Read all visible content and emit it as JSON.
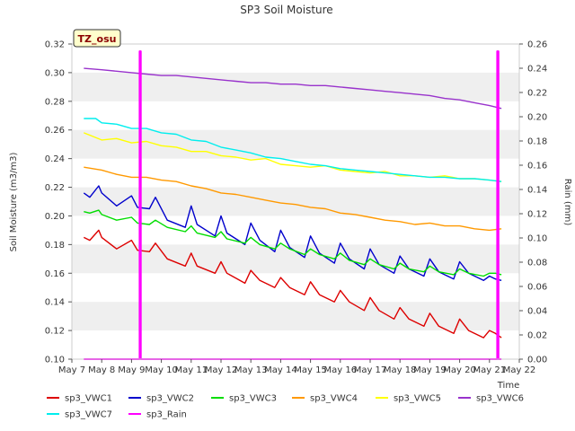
{
  "chart_data": {
    "type": "line",
    "title": "SP3 Soil Moisture",
    "badge": "TZ_osu",
    "xlabel": "Time",
    "ylabel": "Soil Moisture (m3/m3)",
    "y2label": "Rain (mm)",
    "x_tick_labels": [
      "May 7",
      "May 8",
      "May 9",
      "May 10",
      "May 11",
      "May 12",
      "May 13",
      "May 14",
      "May 15",
      "May 16",
      "May 17",
      "May 18",
      "May 19",
      "May 20",
      "May 21",
      "May 22"
    ],
    "xlim": [
      7,
      22
    ],
    "ylim": [
      0.1,
      0.32
    ],
    "y_ticks": [
      "0.10",
      "0.12",
      "0.14",
      "0.16",
      "0.18",
      "0.20",
      "0.22",
      "0.24",
      "0.26",
      "0.28",
      "0.30",
      "0.32"
    ],
    "y2lim": [
      0.0,
      0.26
    ],
    "y2_ticks": [
      "0.00",
      "0.02",
      "0.04",
      "0.06",
      "0.08",
      "0.10",
      "0.12",
      "0.14",
      "0.16",
      "0.18",
      "0.20",
      "0.22",
      "0.24",
      "0.26"
    ],
    "grid": "horizontal bands",
    "legend_position": "bottom",
    "series": [
      {
        "name": "sp3_VWC1",
        "color": "#dd0000",
        "axis": "left",
        "x": [
          7.4,
          7.6,
          7.9,
          8.0,
          8.5,
          9.0,
          9.2,
          9.6,
          9.8,
          10.2,
          10.8,
          11.0,
          11.2,
          11.8,
          12.0,
          12.2,
          12.8,
          13.0,
          13.3,
          13.8,
          14.0,
          14.3,
          14.8,
          15.0,
          15.3,
          15.8,
          16.0,
          16.3,
          16.8,
          17.0,
          17.3,
          17.8,
          18.0,
          18.3,
          18.8,
          19.0,
          19.3,
          19.8,
          20.0,
          20.3,
          20.8,
          21.0,
          21.2,
          21.4
        ],
        "y": [
          0.185,
          0.183,
          0.19,
          0.185,
          0.177,
          0.183,
          0.176,
          0.175,
          0.181,
          0.17,
          0.165,
          0.174,
          0.165,
          0.16,
          0.168,
          0.16,
          0.153,
          0.162,
          0.155,
          0.15,
          0.157,
          0.15,
          0.145,
          0.154,
          0.145,
          0.14,
          0.148,
          0.14,
          0.134,
          0.143,
          0.134,
          0.128,
          0.136,
          0.128,
          0.123,
          0.132,
          0.123,
          0.118,
          0.128,
          0.12,
          0.115,
          0.12,
          0.118,
          0.115
        ]
      },
      {
        "name": "sp3_VWC2",
        "color": "#0000cc",
        "axis": "left",
        "x": [
          7.4,
          7.6,
          7.9,
          8.0,
          8.5,
          9.0,
          9.2,
          9.6,
          9.8,
          10.2,
          10.8,
          11.0,
          11.2,
          11.8,
          12.0,
          12.2,
          12.8,
          13.0,
          13.3,
          13.8,
          14.0,
          14.3,
          14.8,
          15.0,
          15.3,
          15.8,
          16.0,
          16.3,
          16.8,
          17.0,
          17.3,
          17.8,
          18.0,
          18.3,
          18.8,
          19.0,
          19.3,
          19.8,
          20.0,
          20.3,
          20.8,
          21.0,
          21.2,
          21.4
        ],
        "y": [
          0.216,
          0.213,
          0.221,
          0.216,
          0.207,
          0.214,
          0.206,
          0.205,
          0.213,
          0.197,
          0.192,
          0.207,
          0.194,
          0.186,
          0.2,
          0.188,
          0.18,
          0.195,
          0.183,
          0.175,
          0.19,
          0.178,
          0.171,
          0.186,
          0.174,
          0.167,
          0.181,
          0.17,
          0.163,
          0.177,
          0.166,
          0.16,
          0.172,
          0.163,
          0.158,
          0.17,
          0.161,
          0.156,
          0.168,
          0.16,
          0.155,
          0.158,
          0.156,
          0.155
        ]
      },
      {
        "name": "sp3_VWC3",
        "color": "#00dd00",
        "axis": "left",
        "x": [
          7.4,
          7.6,
          7.9,
          8.0,
          8.5,
          9.0,
          9.2,
          9.6,
          9.8,
          10.2,
          10.8,
          11.0,
          11.2,
          11.8,
          12.0,
          12.2,
          12.8,
          13.0,
          13.3,
          13.8,
          14.0,
          14.3,
          14.8,
          15.0,
          15.3,
          15.8,
          16.0,
          16.3,
          16.8,
          17.0,
          17.3,
          17.8,
          18.0,
          18.3,
          18.8,
          19.0,
          19.3,
          19.8,
          20.0,
          20.3,
          20.8,
          21.0,
          21.2,
          21.4
        ],
        "y": [
          0.203,
          0.202,
          0.204,
          0.201,
          0.197,
          0.199,
          0.195,
          0.194,
          0.197,
          0.192,
          0.189,
          0.193,
          0.188,
          0.185,
          0.189,
          0.184,
          0.181,
          0.185,
          0.18,
          0.177,
          0.181,
          0.177,
          0.173,
          0.177,
          0.173,
          0.17,
          0.174,
          0.169,
          0.166,
          0.17,
          0.166,
          0.163,
          0.167,
          0.163,
          0.161,
          0.165,
          0.161,
          0.159,
          0.163,
          0.16,
          0.158,
          0.16,
          0.16,
          0.159
        ]
      },
      {
        "name": "sp3_VWC4",
        "color": "#ff9900",
        "axis": "left",
        "x": [
          7.4,
          8.0,
          8.5,
          9.0,
          9.5,
          10.0,
          10.5,
          11.0,
          11.5,
          12.0,
          12.5,
          13.0,
          13.5,
          14.0,
          14.5,
          15.0,
          15.5,
          16.0,
          16.5,
          17.0,
          17.5,
          18.0,
          18.5,
          19.0,
          19.5,
          20.0,
          20.5,
          21.0,
          21.4
        ],
        "y": [
          0.234,
          0.232,
          0.229,
          0.227,
          0.227,
          0.225,
          0.224,
          0.221,
          0.219,
          0.216,
          0.215,
          0.213,
          0.211,
          0.209,
          0.208,
          0.206,
          0.205,
          0.202,
          0.201,
          0.199,
          0.197,
          0.196,
          0.194,
          0.195,
          0.193,
          0.193,
          0.191,
          0.19,
          0.191
        ]
      },
      {
        "name": "sp3_VWC5",
        "color": "#ffff00",
        "axis": "left",
        "x": [
          7.4,
          8.0,
          8.5,
          9.0,
          9.5,
          10.0,
          10.5,
          11.0,
          11.5,
          12.0,
          12.5,
          13.0,
          13.5,
          14.0,
          14.5,
          15.0,
          15.5,
          16.0,
          16.5,
          17.0,
          17.5,
          18.0,
          18.5,
          19.0,
          19.5,
          20.0,
          20.5,
          21.0,
          21.4
        ],
        "y": [
          0.258,
          0.253,
          0.254,
          0.251,
          0.252,
          0.249,
          0.248,
          0.245,
          0.245,
          0.242,
          0.241,
          0.239,
          0.24,
          0.236,
          0.235,
          0.234,
          0.235,
          0.232,
          0.231,
          0.23,
          0.231,
          0.228,
          0.228,
          0.227,
          0.228,
          0.226,
          0.226,
          0.225,
          0.224
        ]
      },
      {
        "name": "sp3_VWC6",
        "color": "#9933cc",
        "axis": "left",
        "x": [
          7.4,
          8.0,
          8.5,
          9.0,
          9.5,
          10.0,
          10.5,
          11.0,
          11.5,
          12.0,
          12.5,
          13.0,
          13.5,
          14.0,
          14.5,
          15.0,
          15.5,
          16.0,
          16.5,
          17.0,
          17.5,
          18.0,
          18.5,
          19.0,
          19.5,
          20.0,
          20.5,
          21.0,
          21.4
        ],
        "y": [
          0.303,
          0.302,
          0.301,
          0.3,
          0.299,
          0.298,
          0.298,
          0.297,
          0.296,
          0.295,
          0.294,
          0.293,
          0.293,
          0.292,
          0.292,
          0.291,
          0.291,
          0.29,
          0.289,
          0.288,
          0.287,
          0.286,
          0.285,
          0.284,
          0.282,
          0.281,
          0.279,
          0.277,
          0.275
        ]
      },
      {
        "name": "sp3_VWC7",
        "color": "#00eeee",
        "axis": "left",
        "x": [
          7.4,
          7.8,
          8.0,
          8.5,
          9.0,
          9.5,
          10.0,
          10.5,
          11.0,
          11.5,
          12.0,
          12.5,
          13.0,
          13.5,
          14.0,
          14.5,
          15.0,
          15.5,
          16.0,
          16.5,
          17.0,
          17.5,
          18.0,
          18.5,
          19.0,
          19.5,
          20.0,
          20.5,
          21.0,
          21.4
        ],
        "y": [
          0.268,
          0.268,
          0.265,
          0.264,
          0.261,
          0.261,
          0.258,
          0.257,
          0.253,
          0.252,
          0.248,
          0.246,
          0.244,
          0.241,
          0.24,
          0.238,
          0.236,
          0.235,
          0.233,
          0.232,
          0.231,
          0.23,
          0.229,
          0.228,
          0.227,
          0.227,
          0.226,
          0.226,
          0.225,
          0.224
        ]
      },
      {
        "name": "sp3_Rain",
        "color": "#ff00ff",
        "axis": "right",
        "x": [
          7.4,
          9.27,
          9.27,
          9.31,
          9.31,
          21.26,
          21.26,
          21.3,
          21.3,
          21.4
        ],
        "y": [
          0.0,
          0.0,
          0.254,
          0.254,
          0.0,
          0.0,
          0.254,
          0.254,
          0.0,
          0.0
        ]
      }
    ]
  }
}
